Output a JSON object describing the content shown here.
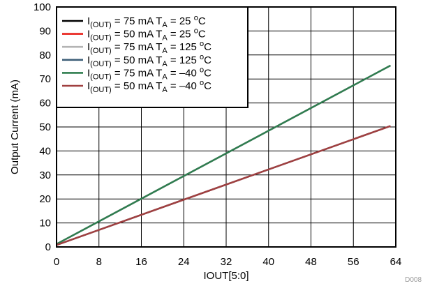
{
  "chart_data": {
    "type": "line",
    "xlabel": "IOUT[5:0]",
    "ylabel": "Output Current (mA)",
    "xlim": [
      0,
      64
    ],
    "ylim": [
      0,
      100
    ],
    "xticks": [
      0,
      8,
      16,
      24,
      32,
      40,
      48,
      56,
      64
    ],
    "yticks": [
      0,
      10,
      20,
      30,
      40,
      50,
      60,
      70,
      80,
      90,
      100
    ],
    "grid": true,
    "legend_position": "top-left",
    "figure_id": "D008",
    "series": [
      {
        "label_main": "I",
        "label_sub": "(OUT)",
        "label_rest": " = 75 mA T",
        "label_sub2": "A",
        "label_rest2": " = 25 ",
        "label_sup": "o",
        "label_unit": "C",
        "color": "#000000",
        "x": [
          0,
          63
        ],
        "y": [
          1.2,
          75.6
        ]
      },
      {
        "label_main": "I",
        "label_sub": "(OUT)",
        "label_rest": " = 50 mA T",
        "label_sub2": "A",
        "label_rest2": " = 25 ",
        "label_sup": "o",
        "label_unit": "C",
        "color": "#e8211a",
        "x": [
          0,
          63
        ],
        "y": [
          0.8,
          50.4
        ]
      },
      {
        "label_main": "I",
        "label_sub": "(OUT)",
        "label_rest": " = 75 mA T",
        "label_sub2": "A",
        "label_rest2": " = 125 ",
        "label_sup": "o",
        "label_unit": "C",
        "color": "#b4b4b4",
        "x": [
          0,
          63
        ],
        "y": [
          1.2,
          75.6
        ]
      },
      {
        "label_main": "I",
        "label_sub": "(OUT)",
        "label_rest": " = 50 mA T",
        "label_sub2": "A",
        "label_rest2": " = 125 ",
        "label_sup": "o",
        "label_unit": "C",
        "color": "#3d5f78",
        "x": [
          0,
          63
        ],
        "y": [
          0.8,
          50.4
        ]
      },
      {
        "label_main": "I",
        "label_sub": "(OUT)",
        "label_rest": " = 75 mA T",
        "label_sub2": "A",
        "label_rest2": " = –40 ",
        "label_sup": "o",
        "label_unit": "C",
        "color": "#2e7d4f",
        "x": [
          0,
          63
        ],
        "y": [
          1.2,
          75.6
        ]
      },
      {
        "label_main": "I",
        "label_sub": "(OUT)",
        "label_rest": " = 50 mA T",
        "label_sub2": "A",
        "label_rest2": " = –40 ",
        "label_sup": "o",
        "label_unit": "C",
        "color": "#a04040",
        "x": [
          0,
          63
        ],
        "y": [
          0.8,
          50.4
        ]
      }
    ]
  }
}
